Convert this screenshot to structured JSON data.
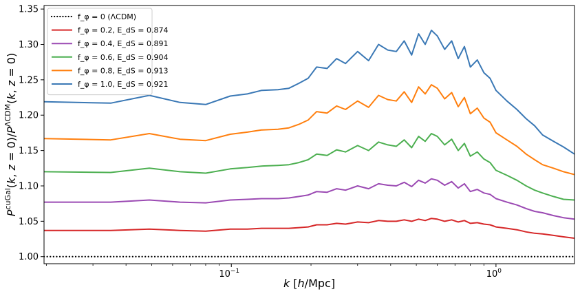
{
  "chart_data": {
    "type": "line",
    "xlabel": "k [h/Mpc]",
    "ylabel": "P^cuGal(k, z=0)/P^ΛCDM(k, z=0)",
    "xscale": "log",
    "xlim": [
      0.0196,
      1.98
    ],
    "ylim": [
      0.99,
      1.355
    ],
    "x_ticks": [
      {
        "value": 0.1,
        "base": "10",
        "exp": "−1"
      },
      {
        "value": 1.0,
        "base": "10",
        "exp": "0"
      }
    ],
    "y_ticks": [
      "1.00",
      "1.05",
      "1.10",
      "1.15",
      "1.20",
      "1.25",
      "1.30",
      "1.35"
    ],
    "y_tick_values": [
      1.0,
      1.05,
      1.1,
      1.15,
      1.2,
      1.25,
      1.3,
      1.35
    ],
    "grid": false,
    "legend_position": "top-left",
    "x": [
      0.0196,
      0.035,
      0.049,
      0.064,
      0.08,
      0.099,
      0.115,
      0.13,
      0.15,
      0.165,
      0.18,
      0.195,
      0.21,
      0.23,
      0.25,
      0.27,
      0.3,
      0.33,
      0.36,
      0.39,
      0.42,
      0.45,
      0.48,
      0.51,
      0.54,
      0.57,
      0.6,
      0.64,
      0.68,
      0.72,
      0.76,
      0.8,
      0.85,
      0.9,
      0.95,
      1.0,
      1.1,
      1.2,
      1.3,
      1.4,
      1.5,
      1.65,
      1.8,
      1.98
    ],
    "series": [
      {
        "name": "f_φ = 0 (ΛCDM)",
        "legend_label": "f_φ = 0 (ΛCDM)",
        "color": "#000000",
        "style": "dotted",
        "values": [
          1.0,
          1.0,
          1.0,
          1.0,
          1.0,
          1.0,
          1.0,
          1.0,
          1.0,
          1.0,
          1.0,
          1.0,
          1.0,
          1.0,
          1.0,
          1.0,
          1.0,
          1.0,
          1.0,
          1.0,
          1.0,
          1.0,
          1.0,
          1.0,
          1.0,
          1.0,
          1.0,
          1.0,
          1.0,
          1.0,
          1.0,
          1.0,
          1.0,
          1.0,
          1.0,
          1.0,
          1.0,
          1.0,
          1.0,
          1.0,
          1.0,
          1.0,
          1.0,
          1.0
        ]
      },
      {
        "name": "f_φ = 0.2, E_dS = 0.874",
        "legend_label": "f_φ = 0.2, E_dS = 0.874",
        "color": "#d62728",
        "style": "solid",
        "values": [
          1.037,
          1.037,
          1.039,
          1.037,
          1.036,
          1.039,
          1.039,
          1.04,
          1.04,
          1.04,
          1.041,
          1.042,
          1.045,
          1.045,
          1.047,
          1.046,
          1.049,
          1.048,
          1.051,
          1.05,
          1.05,
          1.052,
          1.05,
          1.053,
          1.051,
          1.054,
          1.053,
          1.05,
          1.052,
          1.049,
          1.051,
          1.047,
          1.048,
          1.046,
          1.045,
          1.042,
          1.04,
          1.038,
          1.035,
          1.033,
          1.032,
          1.03,
          1.028,
          1.026
        ]
      },
      {
        "name": "f_φ = 0.4, E_dS = 0.891",
        "legend_label": "f_φ = 0.4, E_dS = 0.891",
        "color": "#9b4ab3",
        "style": "solid",
        "values": [
          1.077,
          1.077,
          1.08,
          1.077,
          1.076,
          1.08,
          1.081,
          1.082,
          1.082,
          1.083,
          1.085,
          1.087,
          1.092,
          1.091,
          1.096,
          1.094,
          1.1,
          1.096,
          1.103,
          1.101,
          1.1,
          1.105,
          1.099,
          1.108,
          1.104,
          1.11,
          1.108,
          1.101,
          1.106,
          1.097,
          1.103,
          1.092,
          1.095,
          1.09,
          1.088,
          1.082,
          1.077,
          1.073,
          1.068,
          1.064,
          1.062,
          1.058,
          1.055,
          1.053
        ]
      },
      {
        "name": "f_φ = 0.6, E_dS = 0.904",
        "legend_label": "f_φ = 0.6, E_dS = 0.904",
        "color": "#4caf50",
        "style": "solid",
        "values": [
          1.12,
          1.119,
          1.125,
          1.12,
          1.118,
          1.124,
          1.126,
          1.128,
          1.129,
          1.13,
          1.133,
          1.137,
          1.145,
          1.143,
          1.151,
          1.148,
          1.157,
          1.15,
          1.162,
          1.158,
          1.156,
          1.165,
          1.154,
          1.17,
          1.163,
          1.174,
          1.17,
          1.158,
          1.166,
          1.15,
          1.16,
          1.142,
          1.148,
          1.138,
          1.133,
          1.122,
          1.115,
          1.108,
          1.1,
          1.094,
          1.09,
          1.085,
          1.081,
          1.08
        ]
      },
      {
        "name": "f_φ = 0.8, E_dS = 0.913",
        "legend_label": "f_φ = 0.8, E_dS = 0.913",
        "color": "#ff7f0e",
        "style": "solid",
        "values": [
          1.167,
          1.165,
          1.174,
          1.166,
          1.164,
          1.173,
          1.176,
          1.179,
          1.18,
          1.182,
          1.187,
          1.193,
          1.205,
          1.203,
          1.213,
          1.208,
          1.22,
          1.211,
          1.228,
          1.222,
          1.22,
          1.233,
          1.218,
          1.24,
          1.23,
          1.243,
          1.238,
          1.223,
          1.232,
          1.212,
          1.225,
          1.202,
          1.21,
          1.196,
          1.19,
          1.175,
          1.165,
          1.156,
          1.145,
          1.137,
          1.13,
          1.125,
          1.12,
          1.116
        ]
      },
      {
        "name": "f_φ = 1.0, E_dS = 0.921",
        "legend_label": "f_φ = 1.0, E_dS = 0.921",
        "color": "#3a78b5",
        "style": "solid",
        "values": [
          1.219,
          1.217,
          1.228,
          1.218,
          1.215,
          1.227,
          1.23,
          1.235,
          1.236,
          1.238,
          1.245,
          1.252,
          1.268,
          1.266,
          1.28,
          1.273,
          1.29,
          1.277,
          1.3,
          1.292,
          1.29,
          1.305,
          1.285,
          1.315,
          1.3,
          1.32,
          1.312,
          1.293,
          1.305,
          1.28,
          1.297,
          1.268,
          1.278,
          1.26,
          1.252,
          1.235,
          1.22,
          1.208,
          1.195,
          1.185,
          1.172,
          1.163,
          1.155,
          1.145
        ]
      }
    ]
  }
}
